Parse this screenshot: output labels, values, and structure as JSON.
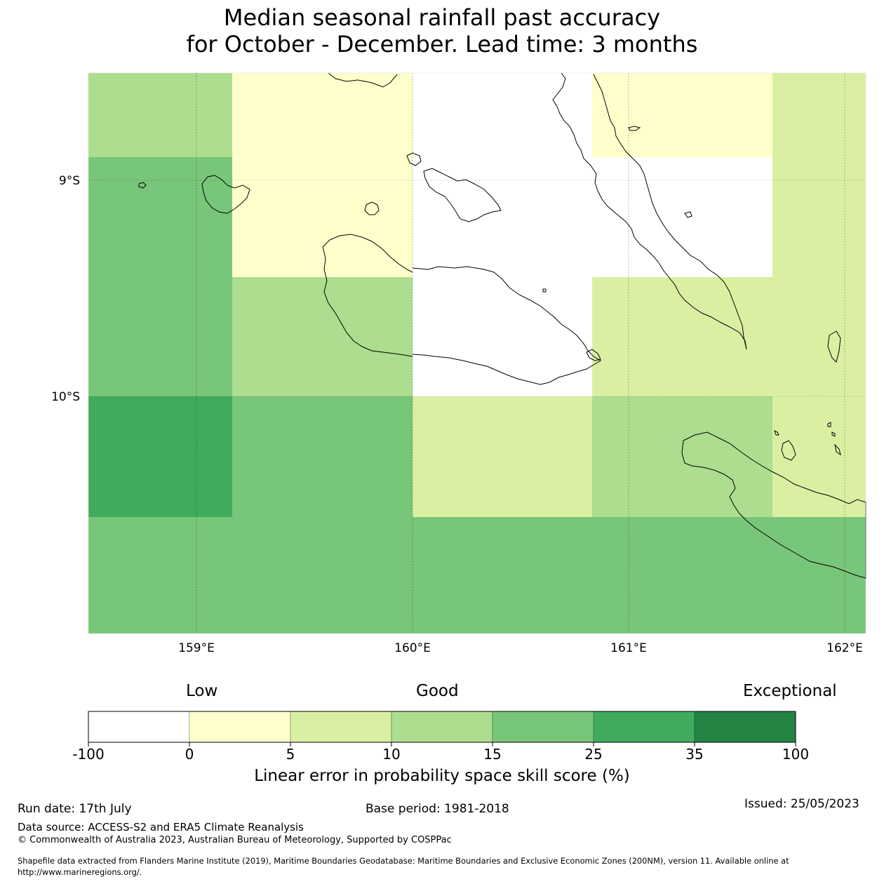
{
  "title": {
    "line1": "Median seasonal rainfall past accuracy",
    "line2": "for October - December. Lead time: 3 months"
  },
  "map": {
    "lat_ticks": [
      "9°S",
      "10°S"
    ],
    "lon_ticks": [
      "159°E",
      "160°E",
      "161°E",
      "162°E"
    ],
    "cell_scores": [
      [
        "10-15",
        "0-5",
        "-100-0",
        "0-5",
        "5-10"
      ],
      [
        "15-25",
        "0-5",
        "-100-0",
        "-100-0",
        "5-10"
      ],
      [
        "15-25",
        "10-15",
        "-100-0",
        "5-10",
        "5-10"
      ],
      [
        "25-35",
        "15-25",
        "5-10",
        "10-15",
        "5-10"
      ],
      [
        "15-25",
        "15-25",
        "15-25",
        "15-25",
        "15-25"
      ]
    ]
  },
  "legend": {
    "categories": [
      "Low",
      "Good",
      "Exceptional"
    ],
    "bins": [
      {
        "color": "#ffffff"
      },
      {
        "color": "#ffffcc"
      },
      {
        "color": "#d9f0a3"
      },
      {
        "color": "#addd8e"
      },
      {
        "color": "#78c679"
      },
      {
        "color": "#41ab5d"
      },
      {
        "color": "#238443"
      }
    ],
    "tick_labels": [
      "-100",
      "0",
      "5",
      "10",
      "15",
      "25",
      "35",
      "100"
    ],
    "axis_label": "Linear error in probability space skill score (%)"
  },
  "footer": {
    "run_date": "Run date: 17th July",
    "base_period": "Base period: 1981-2018",
    "issued": "Issued: 25/05/2023",
    "data_source": "Data source: ACCESS-S2 and ERA5 Climate Reanalysis",
    "copyright": "© Commonwealth of Australia 2023, Australian Bureau of Meteorology, Supported by COSPPac",
    "shapefile_line1": "Shapefile data extracted from Flanders Marine Institute (2019), Maritime Boundaries Geodatabase: Maritime Boundaries and Exclusive Economic Zones (200NM), version 11. Available online at",
    "shapefile_line2": "http://www.marineregions.org/."
  }
}
